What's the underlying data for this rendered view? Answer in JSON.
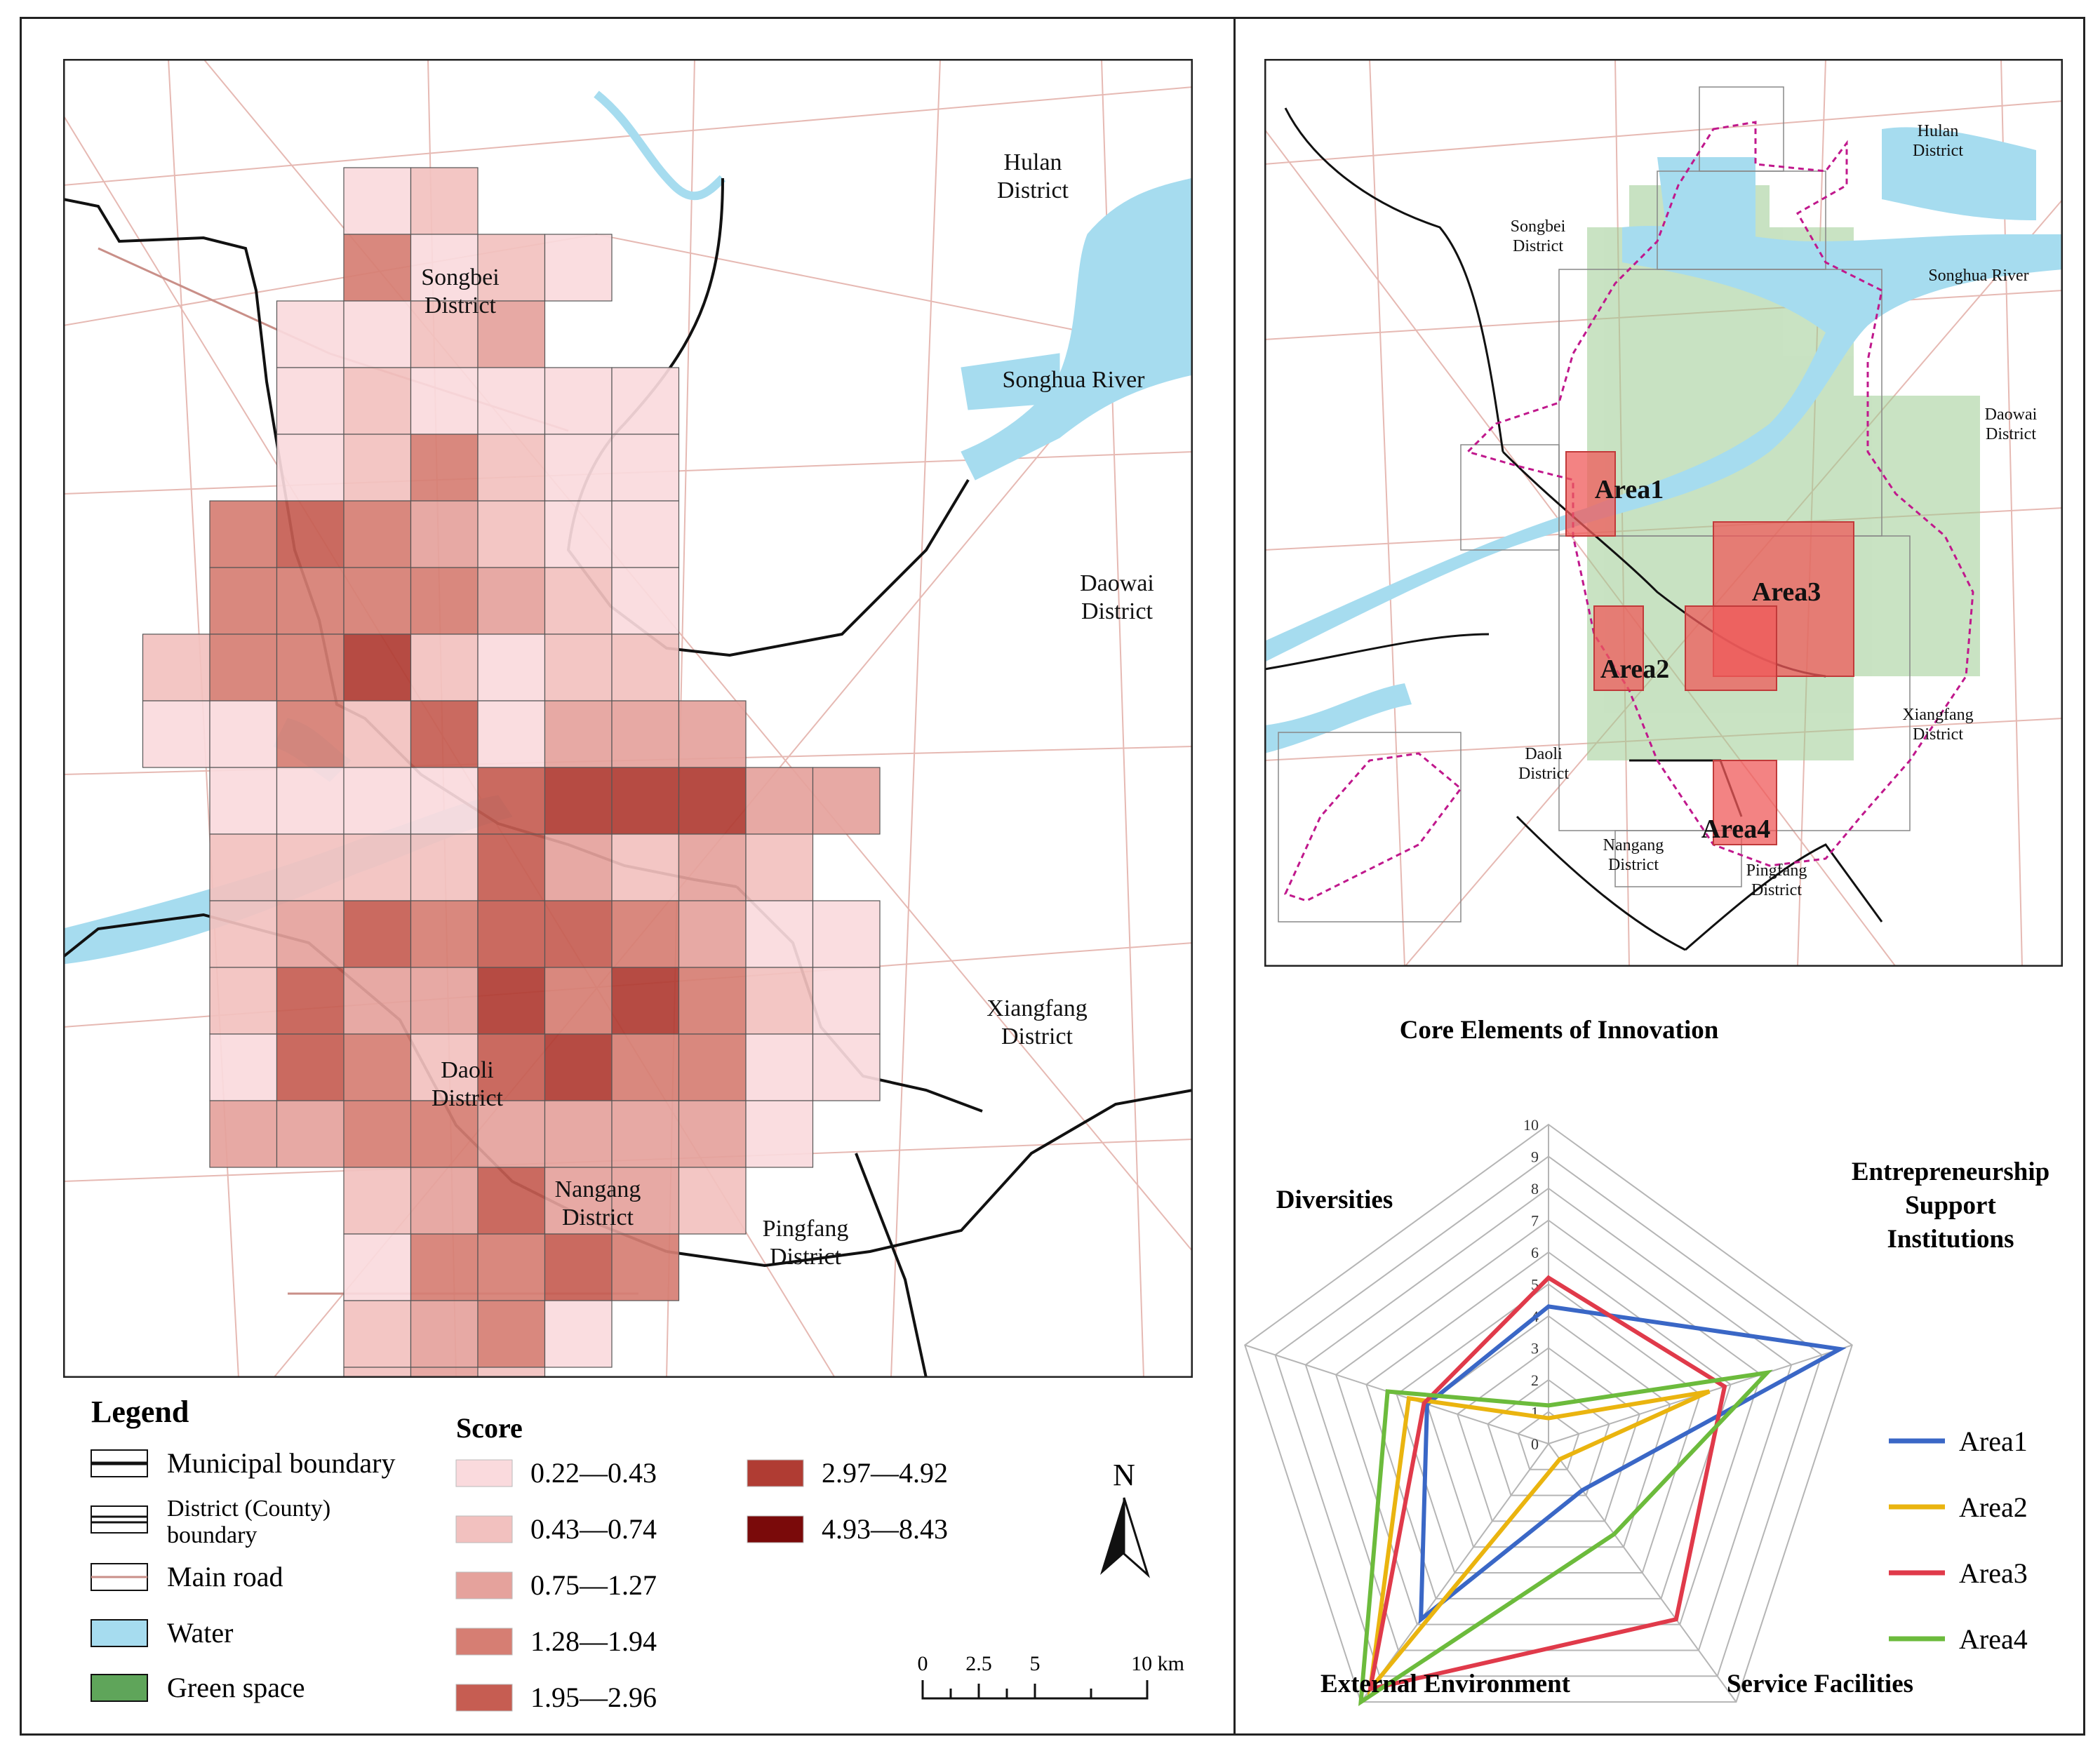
{
  "left_map": {
    "labels": {
      "hulan": [
        "Hulan",
        "District"
      ],
      "songbei": [
        "Songbei",
        "District"
      ],
      "songhua": "Songhua River",
      "daowai": [
        "Daowai",
        "District"
      ],
      "xiangfang": [
        "Xiangfang",
        "District"
      ],
      "daoli": [
        "Daoli",
        "District"
      ],
      "nangang": [
        "Nangang",
        "District"
      ],
      "pingfang": [
        "Pingfang",
        "District"
      ]
    },
    "grid_cols": [
      "............",
      "....12......",
      "....4121....",
      "...1123.....",
      "...121111...",
      "...124211...",
      "..4543211...",
      "..4444321...",
      ".24462122...",
      ".114251333..",
      "..1111566633",
      "..222253232.",
      "..2354554311",
      "..2533646421",
      "..1542564411",
      "..334433331.",
      "....235332..",
      "....14454...",
      "....2341....",
      "....232.....",
      "....232....."
    ]
  },
  "legend": {
    "title": "Legend",
    "items": [
      {
        "label": "Municipal boundary",
        "symbol": "municipal"
      },
      {
        "label": "District (County)",
        "label2": "boundary",
        "symbol": "district"
      },
      {
        "label": "Main road",
        "symbol": "road"
      },
      {
        "label": "Water",
        "symbol": "water",
        "color": "#a6dcef"
      },
      {
        "label": "Green space",
        "symbol": "green",
        "color": "#5fa55a"
      }
    ],
    "score_title": "Score",
    "score_classes": [
      {
        "label": "0.22—0.43",
        "color": "#fadadd"
      },
      {
        "label": "0.43—0.74",
        "color": "#f2c1bf"
      },
      {
        "label": "0.75—1.27",
        "color": "#e5a29c"
      },
      {
        "label": "1.28—1.94",
        "color": "#d67e73"
      },
      {
        "label": "1.95—2.96",
        "color": "#c65d52"
      },
      {
        "label": "2.97—4.92",
        "color": "#b03c33"
      },
      {
        "label": "4.93—8.43",
        "color": "#7a0a0a"
      }
    ]
  },
  "north_arrow": "N",
  "scale_bar": {
    "ticks": [
      "0",
      "2.5",
      "5",
      "10 km"
    ]
  },
  "right_map": {
    "labels": {
      "hulan": [
        "Hulan",
        "District"
      ],
      "songbei": [
        "Songbei",
        "District"
      ],
      "songhua": "Songhua River",
      "daowai": [
        "Daowai",
        "District"
      ],
      "xiangfang": [
        "Xiangfang",
        "District"
      ],
      "daoli": [
        "Daoli",
        "District"
      ],
      "nangang": [
        "Nangang",
        "District"
      ],
      "pingfang": [
        "Pingfang",
        "District"
      ]
    },
    "areas": [
      "Area1",
      "Area2",
      "Area3",
      "Area4"
    ]
  },
  "chart_data": {
    "type": "radar",
    "axes": [
      "Core Elements of Innovation",
      "Entrepreneurship Support Institutions",
      "Service Facilities",
      "External Environment",
      "Diversities"
    ],
    "axis_label_lines": [
      [
        "Core Elements of Innovation"
      ],
      [
        "Entrepreneurship",
        "Support",
        "Institutions"
      ],
      [
        "Service Facilities"
      ],
      [
        "External Environment"
      ],
      [
        "Diversities"
      ]
    ],
    "range": [
      0,
      10
    ],
    "tick_labels": [
      "0",
      "1",
      "2",
      "3",
      "4",
      "5",
      "6",
      "7",
      "8",
      "9",
      "10"
    ],
    "series": [
      {
        "name": "Area1",
        "color": "#3a67c6",
        "values": [
          4.3,
          9.6,
          1.8,
          6.8,
          4.0
        ]
      },
      {
        "name": "Area2",
        "color": "#eab40f",
        "values": [
          0.8,
          5.3,
          0.6,
          9.5,
          4.6
        ]
      },
      {
        "name": "Area3",
        "color": "#e03a4a",
        "values": [
          5.2,
          5.8,
          6.8,
          9.5,
          4.1
        ]
      },
      {
        "name": "Area4",
        "color": "#6cbb3c",
        "values": [
          1.2,
          7.2,
          3.5,
          10.0,
          5.3
        ]
      }
    ]
  }
}
